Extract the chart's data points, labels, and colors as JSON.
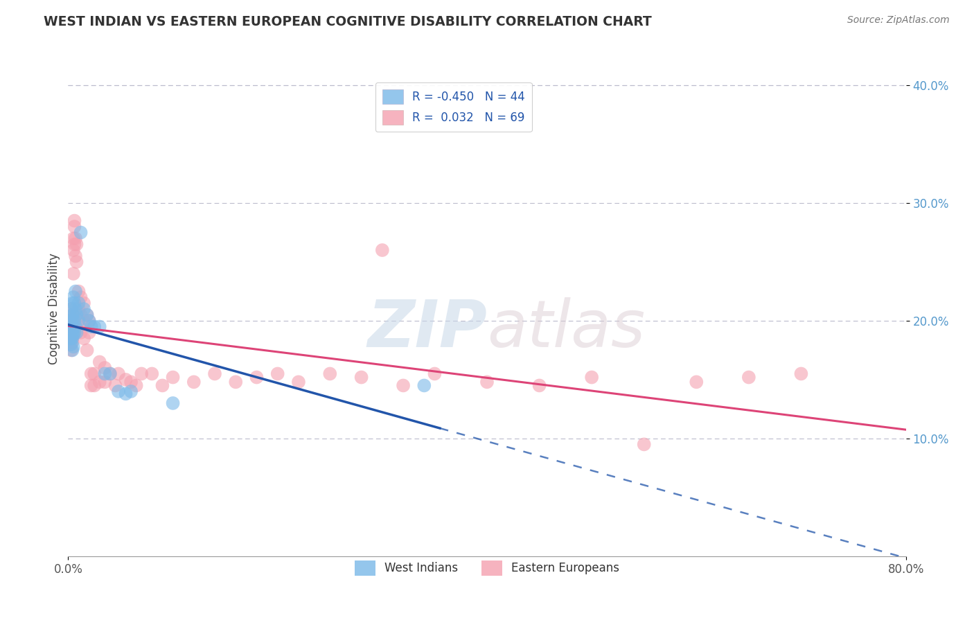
{
  "title": "WEST INDIAN VS EASTERN EUROPEAN COGNITIVE DISABILITY CORRELATION CHART",
  "source": "Source: ZipAtlas.com",
  "ylabel": "Cognitive Disability",
  "legend_labels": [
    "West Indians",
    "Eastern Europeans"
  ],
  "legend_R": [
    -0.45,
    0.032
  ],
  "legend_N": [
    44,
    69
  ],
  "xlim": [
    0.0,
    0.8
  ],
  "ylim": [
    0.0,
    0.42
  ],
  "yticks": [
    0.1,
    0.2,
    0.3,
    0.4
  ],
  "blue_color": "#7ab8e8",
  "pink_color": "#f4a0b0",
  "blue_line_color": "#2255aa",
  "pink_line_color": "#dd4477",
  "blue_scatter": [
    [
      0.002,
      0.2
    ],
    [
      0.002,
      0.195
    ],
    [
      0.002,
      0.185
    ],
    [
      0.003,
      0.21
    ],
    [
      0.003,
      0.2
    ],
    [
      0.003,
      0.195
    ],
    [
      0.003,
      0.19
    ],
    [
      0.003,
      0.185
    ],
    [
      0.003,
      0.18
    ],
    [
      0.004,
      0.215
    ],
    [
      0.004,
      0.205
    ],
    [
      0.004,
      0.195
    ],
    [
      0.004,
      0.19
    ],
    [
      0.004,
      0.185
    ],
    [
      0.004,
      0.175
    ],
    [
      0.005,
      0.22
    ],
    [
      0.005,
      0.205
    ],
    [
      0.005,
      0.195
    ],
    [
      0.005,
      0.188
    ],
    [
      0.005,
      0.178
    ],
    [
      0.006,
      0.215
    ],
    [
      0.006,
      0.2
    ],
    [
      0.006,
      0.19
    ],
    [
      0.007,
      0.225
    ],
    [
      0.007,
      0.21
    ],
    [
      0.007,
      0.195
    ],
    [
      0.008,
      0.205
    ],
    [
      0.008,
      0.19
    ],
    [
      0.01,
      0.215
    ],
    [
      0.01,
      0.2
    ],
    [
      0.012,
      0.275
    ],
    [
      0.015,
      0.21
    ],
    [
      0.018,
      0.205
    ],
    [
      0.02,
      0.2
    ],
    [
      0.022,
      0.195
    ],
    [
      0.025,
      0.195
    ],
    [
      0.03,
      0.195
    ],
    [
      0.035,
      0.155
    ],
    [
      0.04,
      0.155
    ],
    [
      0.048,
      0.14
    ],
    [
      0.055,
      0.138
    ],
    [
      0.06,
      0.14
    ],
    [
      0.1,
      0.13
    ],
    [
      0.34,
      0.145
    ]
  ],
  "pink_scatter": [
    [
      0.002,
      0.2
    ],
    [
      0.002,
      0.19
    ],
    [
      0.002,
      0.18
    ],
    [
      0.003,
      0.21
    ],
    [
      0.003,
      0.195
    ],
    [
      0.003,
      0.185
    ],
    [
      0.003,
      0.175
    ],
    [
      0.004,
      0.205
    ],
    [
      0.004,
      0.195
    ],
    [
      0.004,
      0.182
    ],
    [
      0.005,
      0.27
    ],
    [
      0.005,
      0.26
    ],
    [
      0.005,
      0.24
    ],
    [
      0.006,
      0.285
    ],
    [
      0.006,
      0.28
    ],
    [
      0.006,
      0.265
    ],
    [
      0.007,
      0.27
    ],
    [
      0.007,
      0.255
    ],
    [
      0.008,
      0.265
    ],
    [
      0.008,
      0.25
    ],
    [
      0.01,
      0.225
    ],
    [
      0.01,
      0.21
    ],
    [
      0.01,
      0.195
    ],
    [
      0.012,
      0.22
    ],
    [
      0.012,
      0.205
    ],
    [
      0.012,
      0.19
    ],
    [
      0.015,
      0.215
    ],
    [
      0.015,
      0.2
    ],
    [
      0.015,
      0.185
    ],
    [
      0.018,
      0.205
    ],
    [
      0.018,
      0.175
    ],
    [
      0.02,
      0.2
    ],
    [
      0.02,
      0.19
    ],
    [
      0.022,
      0.155
    ],
    [
      0.022,
      0.145
    ],
    [
      0.025,
      0.155
    ],
    [
      0.025,
      0.145
    ],
    [
      0.03,
      0.165
    ],
    [
      0.03,
      0.148
    ],
    [
      0.035,
      0.16
    ],
    [
      0.035,
      0.148
    ],
    [
      0.04,
      0.155
    ],
    [
      0.045,
      0.145
    ],
    [
      0.048,
      0.155
    ],
    [
      0.055,
      0.15
    ],
    [
      0.06,
      0.148
    ],
    [
      0.065,
      0.145
    ],
    [
      0.07,
      0.155
    ],
    [
      0.08,
      0.155
    ],
    [
      0.09,
      0.145
    ],
    [
      0.1,
      0.152
    ],
    [
      0.12,
      0.148
    ],
    [
      0.14,
      0.155
    ],
    [
      0.16,
      0.148
    ],
    [
      0.18,
      0.152
    ],
    [
      0.2,
      0.155
    ],
    [
      0.22,
      0.148
    ],
    [
      0.25,
      0.155
    ],
    [
      0.28,
      0.152
    ],
    [
      0.3,
      0.26
    ],
    [
      0.32,
      0.145
    ],
    [
      0.35,
      0.155
    ],
    [
      0.4,
      0.148
    ],
    [
      0.45,
      0.145
    ],
    [
      0.5,
      0.152
    ],
    [
      0.55,
      0.095
    ],
    [
      0.6,
      0.148
    ],
    [
      0.65,
      0.152
    ],
    [
      0.7,
      0.155
    ]
  ],
  "watermark_zip": "ZIP",
  "watermark_atlas": "atlas",
  "grid_color": "#bbbbcc",
  "background_color": "#ffffff"
}
